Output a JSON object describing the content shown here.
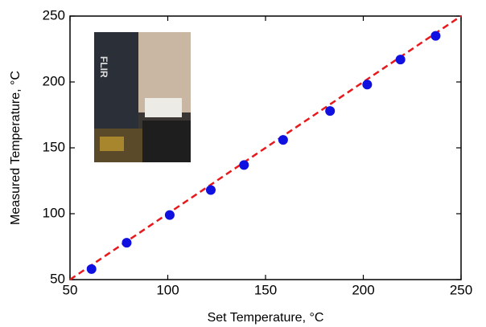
{
  "chart_data": {
    "type": "scatter",
    "x_label": "Set Temperature, °C",
    "y_label": "Measured Temperature, °C",
    "x": [
      61,
      79,
      101,
      122,
      139,
      159,
      183,
      202,
      219,
      237
    ],
    "values": [
      58,
      78,
      99,
      118,
      137,
      156,
      178,
      198,
      217,
      235
    ],
    "color": "#1010e0",
    "fit": {
      "x": [
        50,
        250
      ],
      "values": [
        50,
        250
      ],
      "color": "#e8191c"
    },
    "xlim": [
      50,
      250
    ],
    "ylim": [
      50,
      250
    ],
    "xticks": [
      50,
      100,
      150,
      200,
      250
    ],
    "yticks": [
      50,
      100,
      150,
      200,
      250
    ]
  }
}
